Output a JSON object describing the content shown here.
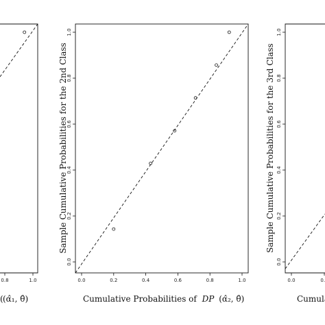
{
  "chart_data": [
    {
      "type": "scatter",
      "panel": "left (partially visible)",
      "xlabel_visible": "(α̂₁, θ̂)",
      "x_ticks": [
        "0.8",
        "1.0"
      ],
      "xlim": [
        0,
        1
      ],
      "ylim": [
        0,
        1
      ],
      "reference_line": "dashed y = x",
      "points": [
        {
          "x": 0.94,
          "y": 1.0
        }
      ]
    },
    {
      "type": "scatter",
      "panel": "middle",
      "xlabel": "Cumulative Probabilities of",
      "xlabel_math": "DP",
      "xlabel_args": "(α̂₂, θ̂)",
      "ylabel": "Sample Cumulative Probabilities for the 2nd Class",
      "x_ticks": [
        "0.0",
        "0.2",
        "0.4",
        "0.6",
        "0.8",
        "1.0"
      ],
      "y_ticks": [
        "0.0",
        "0.2",
        "0.4",
        "0.6",
        "0.8",
        "1.0"
      ],
      "xlim": [
        0,
        1
      ],
      "ylim": [
        0,
        1
      ],
      "reference_line": "dashed y = x",
      "points": [
        {
          "x": 0.2,
          "y": 0.143
        },
        {
          "x": 0.43,
          "y": 0.429
        },
        {
          "x": 0.58,
          "y": 0.571
        },
        {
          "x": 0.71,
          "y": 0.714
        },
        {
          "x": 0.84,
          "y": 0.857
        },
        {
          "x": 0.92,
          "y": 1.0
        }
      ]
    },
    {
      "type": "scatter",
      "panel": "right (partially visible)",
      "xlabel_visible": "Cumula",
      "ylabel": "Sample Cumulative Probabilities for the 3rd Class",
      "x_ticks": [
        "0.0",
        "0.2"
      ],
      "y_ticks": [
        "0.0",
        "0.2",
        "0.4",
        "0.6",
        "0.8",
        "1.0"
      ],
      "xlim": [
        0,
        1
      ],
      "ylim": [
        0,
        1
      ],
      "reference_line": "dashed y = x",
      "points": []
    }
  ]
}
